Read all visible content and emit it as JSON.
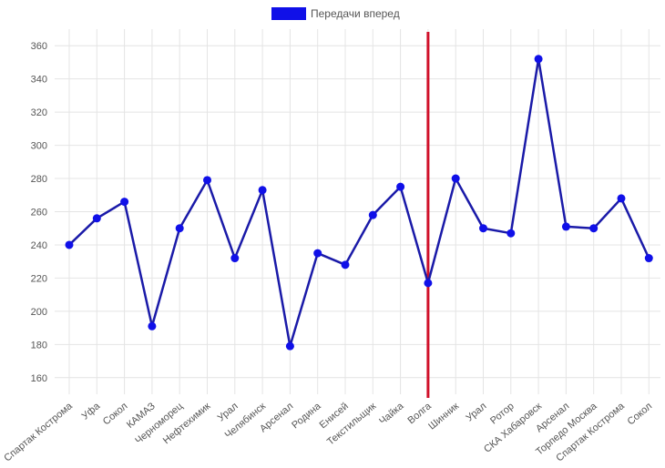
{
  "chart_data": {
    "type": "line",
    "legend": {
      "position": "top-center"
    },
    "grid": true,
    "ylim": [
      150,
      370
    ],
    "yticks": [
      160,
      180,
      200,
      220,
      240,
      260,
      280,
      300,
      320,
      340,
      360
    ],
    "categories": [
      "Спартак Кострома",
      "Уфа",
      "Сокол",
      "КАМАЗ",
      "Черноморец",
      "Нефтехимик",
      "Урал",
      "Челябинск",
      "Арсенал",
      "Родина",
      "Енисей",
      "Текстильщик",
      "Чайка",
      "Волга",
      "Шинник",
      "Урал",
      "Ротор",
      "СКА Хабаровск",
      "Арсенал",
      "Торпедо Москва",
      "Спартак Кострома",
      "Сокол"
    ],
    "series": [
      {
        "name": "Передачи вперед",
        "color": "#1010e8",
        "line_color": "#1a1aa8",
        "values": [
          240,
          256,
          266,
          191,
          250,
          279,
          232,
          273,
          179,
          235,
          228,
          258,
          275,
          217,
          280,
          250,
          247,
          352,
          251,
          250,
          268,
          232
        ]
      }
    ],
    "vertical_marker": {
      "category_index": 13,
      "color": "#d0102a"
    }
  }
}
